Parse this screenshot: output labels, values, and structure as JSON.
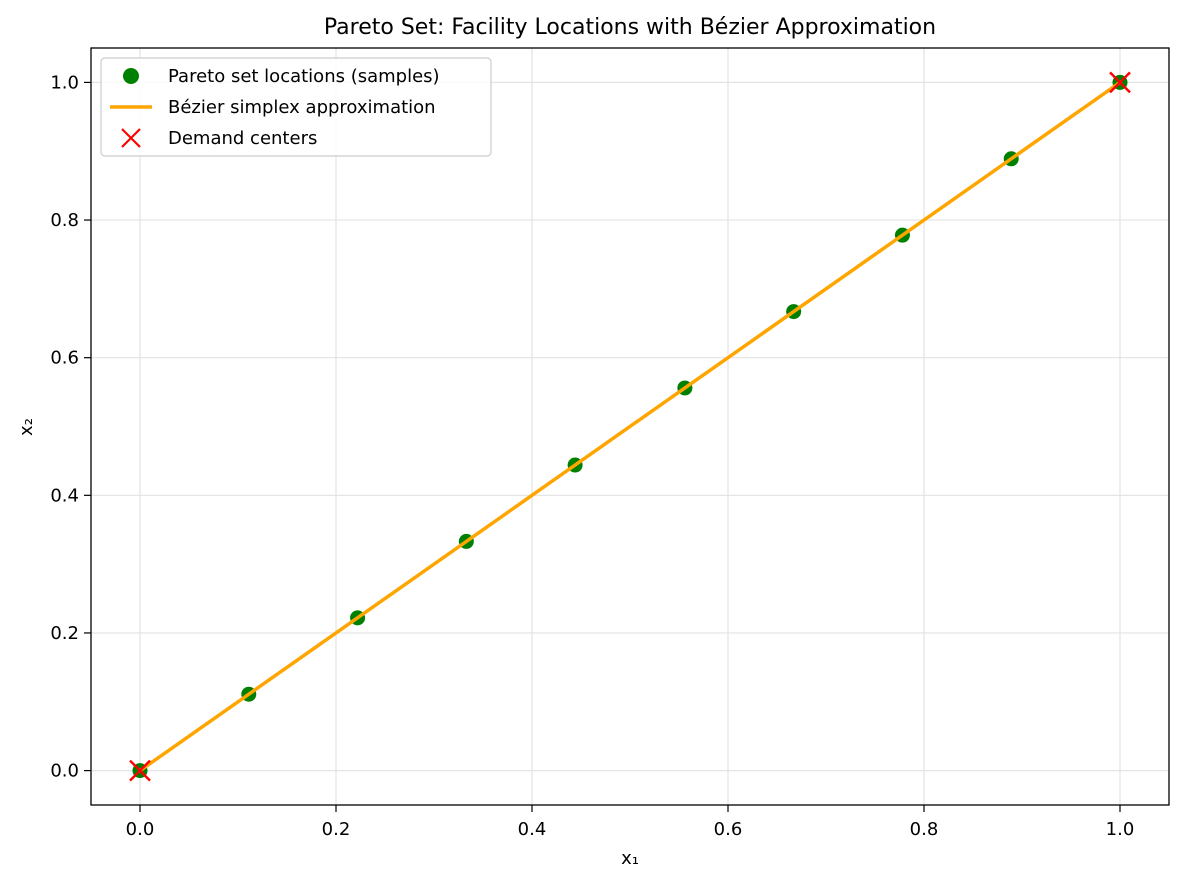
{
  "chart_data": {
    "type": "scatter",
    "title": "Pareto Set: Facility Locations with Bézier Approximation",
    "xlabel": "x₁",
    "ylabel": "x₂",
    "xlim": [
      -0.05,
      1.05
    ],
    "ylim": [
      -0.05,
      1.05
    ],
    "xticks": [
      0.0,
      0.2,
      0.4,
      0.6,
      0.8,
      1.0
    ],
    "yticks": [
      0.0,
      0.2,
      0.4,
      0.6,
      0.8,
      1.0
    ],
    "xtick_labels": [
      "0.0",
      "0.2",
      "0.4",
      "0.6",
      "0.8",
      "1.0"
    ],
    "ytick_labels": [
      "0.0",
      "0.2",
      "0.4",
      "0.6",
      "0.8",
      "1.0"
    ],
    "grid": true,
    "legend_position": "top-left",
    "series": [
      {
        "name": "Pareto set locations (samples)",
        "kind": "scatter",
        "marker": "circle",
        "color": "#008000",
        "x": [
          0.0,
          0.111,
          0.222,
          0.333,
          0.444,
          0.556,
          0.667,
          0.778,
          0.889,
          1.0
        ],
        "y": [
          0.0,
          0.111,
          0.222,
          0.333,
          0.444,
          0.556,
          0.667,
          0.778,
          0.889,
          1.0
        ]
      },
      {
        "name": "Bézier simplex approximation",
        "kind": "line",
        "color": "#FFA500",
        "x": [
          0.0,
          1.0
        ],
        "y": [
          0.0,
          1.0
        ]
      },
      {
        "name": "Demand centers",
        "kind": "scatter",
        "marker": "x",
        "color": "#FF0000",
        "x": [
          0.0,
          1.0
        ],
        "y": [
          0.0,
          1.0
        ]
      }
    ]
  }
}
